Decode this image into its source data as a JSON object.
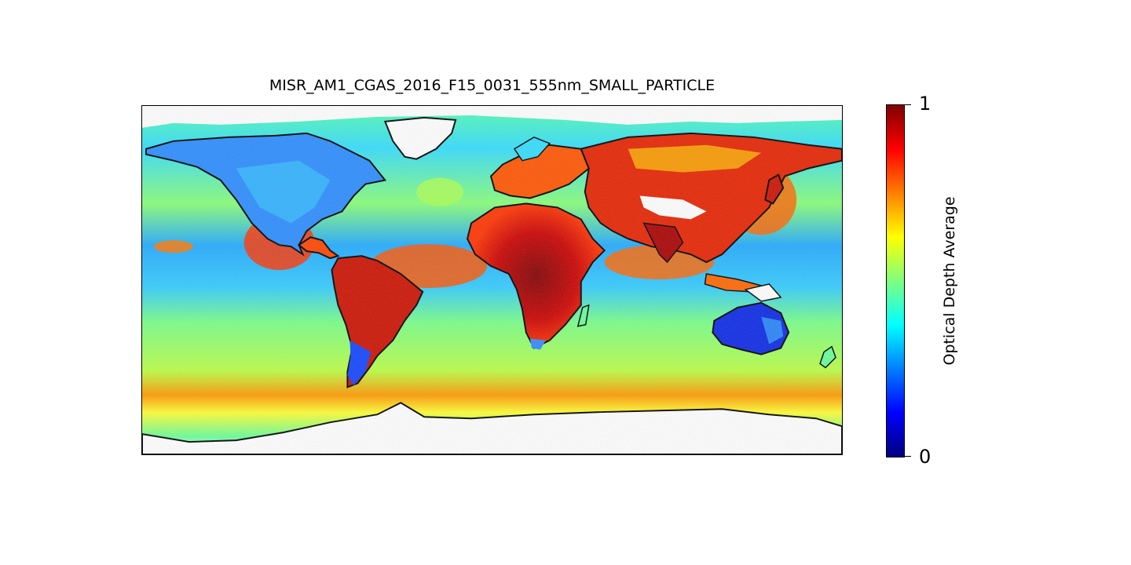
{
  "title": "MISR_AM1_CGAS_2016_F15_0031_555nm_SMALL_PARTICLE",
  "colorbar": {
    "label": "Optical Depth Average",
    "min_label": "0",
    "max_label": "1",
    "range": [
      0,
      1
    ],
    "colormap": "jet",
    "colors": [
      "#00007f",
      "#0000ff",
      "#007fff",
      "#00ffff",
      "#7fff7f",
      "#ffff00",
      "#ff7f00",
      "#ff0000",
      "#7f0000"
    ]
  },
  "map": {
    "projection": "plate-carree",
    "extent": {
      "lon": [
        -180,
        180
      ],
      "lat": [
        -90,
        90
      ]
    },
    "coastline_color": "#000000",
    "no_data_color": "#ffffff"
  }
}
